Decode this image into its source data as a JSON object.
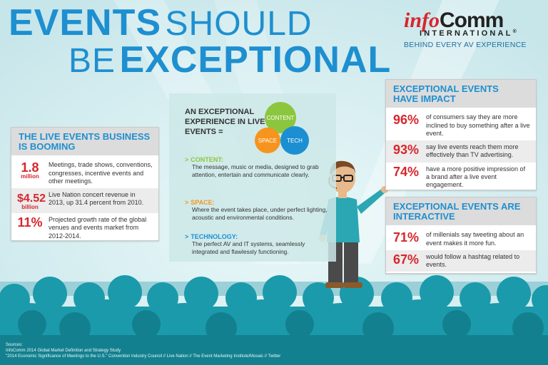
{
  "title": {
    "line1_bold": "EVENTS",
    "line1_light": "SHOULD",
    "line2_light": "BE",
    "line2_bold": "EXCEPTIONAL"
  },
  "logo": {
    "info": "info",
    "comm": "Comm",
    "international": "INTERNATIONAL",
    "registered": "®",
    "tagline": "BEHIND EVERY AV EXPERIENCE"
  },
  "live_events": {
    "heading": "THE LIVE EVENTS BUSINESS IS BOOMING",
    "stats": [
      {
        "value": "1.8",
        "unit": "million",
        "text": "Meetings, trade shows, conventions, congresses, incentive events and other meetings."
      },
      {
        "value": "$4.52",
        "unit": "billion",
        "text": "Live Nation concert revenue in 2013, up 31.4 percent from 2010."
      },
      {
        "value": "11%",
        "unit": "",
        "text": "Projected growth rate of the global venues and events market from 2012-2014."
      }
    ]
  },
  "center": {
    "title": "AN EXCEPTIONAL EXPERIENCE IN LIVE EVENTS =",
    "circles": {
      "content": "CONTENT",
      "space": "SPACE",
      "tech": "TECH"
    },
    "definitions": [
      {
        "arrow": ">",
        "label": "CONTENT:",
        "text": "The message, music or media, designed to grab attention, entertain and communicate clearly."
      },
      {
        "arrow": ">",
        "label": "SPACE:",
        "text": "Where the event takes place, under perfect lighting, acoustic and environmental conditions."
      },
      {
        "arrow": ">",
        "label": "TECHNOLOGY:",
        "text": "The perfect AV and IT systems, seamlessly integrated and flawlessly functioning."
      }
    ]
  },
  "impact": {
    "heading": "EXCEPTIONAL EVENTS HAVE IMPACT",
    "stats": [
      {
        "value": "96%",
        "text": "of consumers say they are more inclined to buy something after a live event."
      },
      {
        "value": "93%",
        "text": "say live events reach them more effectively than TV advertising."
      },
      {
        "value": "74%",
        "text": "have a more positive impression of a brand after a live event engagement."
      }
    ]
  },
  "interactive": {
    "heading": "EXCEPTIONAL EVENTS ARE INTERACTIVE",
    "stats": [
      {
        "value": "71%",
        "text": "of millenials say tweeting about an event makes it more fun."
      },
      {
        "value": "67%",
        "text": "would follow a hashtag related to events."
      }
    ]
  },
  "sources": {
    "label": "Sources:",
    "line1": "InfoComm 2014 Global Market Definition and Strategy Study",
    "line2": "\"2014 Economic Significance of Meetings to the U.S.\" Convention Industry Council // Live Nation // The Event Marketing Institute/Mosaic // Twitter"
  },
  "colors": {
    "title_blue": "#1e8fd0",
    "stat_red": "#d7262d",
    "content_green": "#8cc63f",
    "space_orange": "#f7941d",
    "tech_blue": "#1c8fd3",
    "audience_teal": "#1b9aab"
  }
}
